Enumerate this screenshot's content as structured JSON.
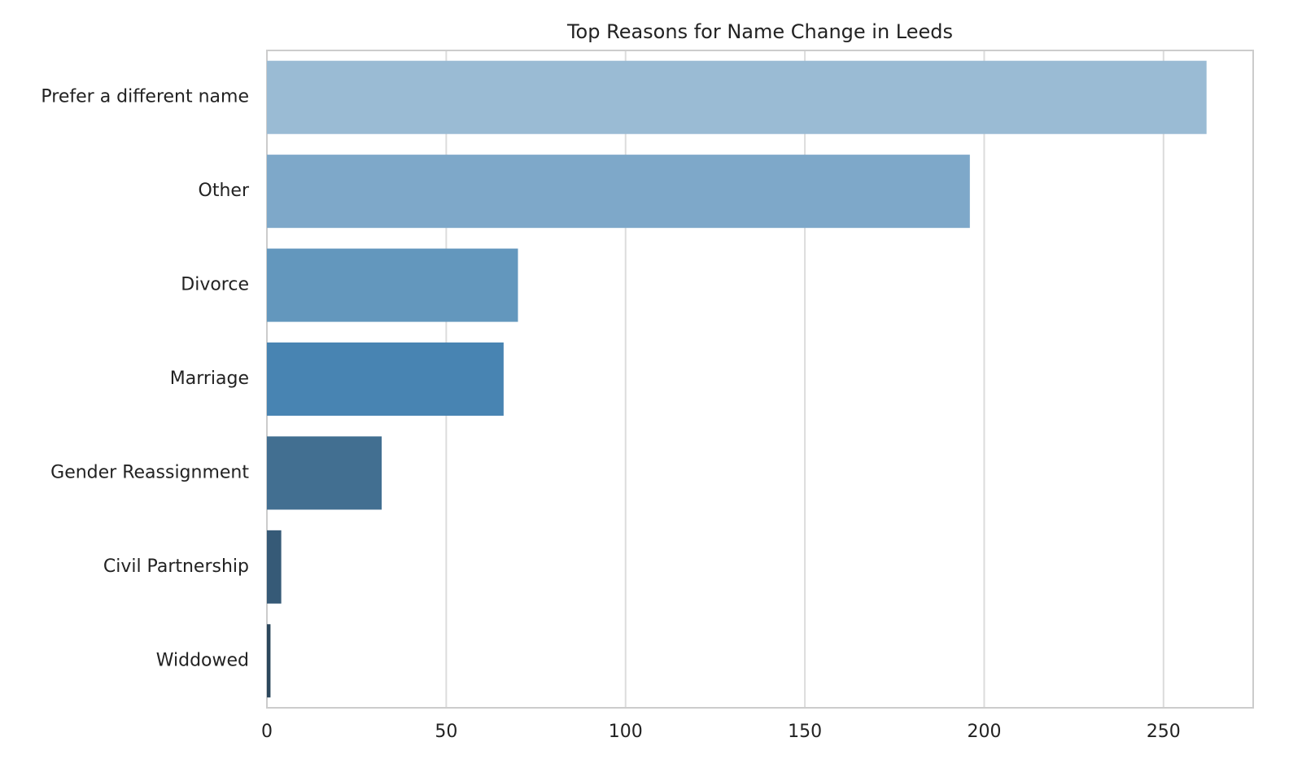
{
  "chart_data": {
    "type": "barh",
    "title": "Top Reasons for Name Change in Leeds",
    "categories": [
      "Prefer a different name",
      "Other",
      "Divorce",
      "Marriage",
      "Gender Reassignment",
      "Civil Partnership",
      "Widdowed"
    ],
    "values": [
      262,
      196,
      70,
      66,
      32,
      4,
      1
    ],
    "colors": [
      "#9abbd4",
      "#7ea8c9",
      "#6397bd",
      "#4884b2",
      "#426f91",
      "#365a77",
      "#2c475c"
    ],
    "xlim": [
      0,
      275
    ],
    "xticks": [
      0,
      50,
      100,
      150,
      200,
      250
    ],
    "grid": true
  }
}
